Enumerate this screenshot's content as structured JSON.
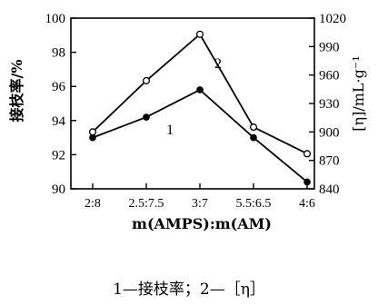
{
  "chart_data": {
    "type": "line",
    "categories": [
      "2:8",
      "2.5:7.5",
      "3:7",
      "5.5:6.5",
      "4:6"
    ],
    "xlabel": "m(AMPS):m(AM)",
    "ylabel_left": "接枝率/%",
    "ylabel_right": "[η]/mL·g⁻¹",
    "ylim_left": [
      90,
      100
    ],
    "yticks_left": [
      90,
      92,
      94,
      96,
      98,
      100
    ],
    "ylim_right": [
      840,
      1020
    ],
    "yticks_right": [
      840,
      870,
      900,
      930,
      960,
      990,
      1020
    ],
    "grid": false,
    "series": [
      {
        "name": "1",
        "axis": "left",
        "marker": "filled-circle",
        "values": [
          93.0,
          94.2,
          95.8,
          93.0,
          90.4
        ]
      },
      {
        "name": "2",
        "axis": "right",
        "marker": "open-circle",
        "values": [
          900,
          954,
          1003,
          905,
          877
        ]
      }
    ],
    "caption": "1—接枝率；2—［η］"
  }
}
